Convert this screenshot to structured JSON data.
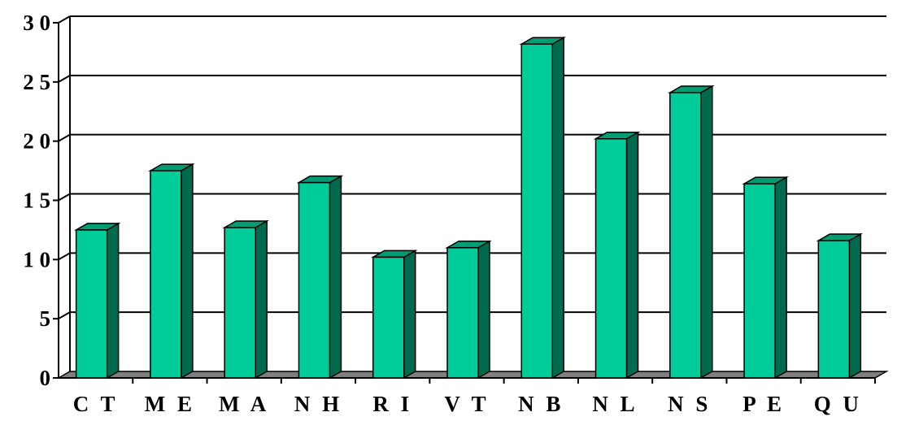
{
  "chart_data": {
    "type": "bar",
    "title": "",
    "xlabel": "",
    "ylabel": "",
    "categories": [
      "CT",
      "ME",
      "MA",
      "NH",
      "RI",
      "VT",
      "NB",
      "NL",
      "NS",
      "PE",
      "QU"
    ],
    "category_labels": [
      "C T",
      "M E",
      "M A",
      "N H",
      "R I",
      "V T",
      "N B",
      "N L",
      "N S",
      "P E",
      "Q U"
    ],
    "values": [
      12.5,
      17.5,
      12.7,
      16.5,
      10.2,
      11.0,
      28.2,
      20.2,
      24.1,
      16.4,
      11.6
    ],
    "ylim": [
      0,
      30
    ],
    "yticks": [
      0,
      5,
      10,
      15,
      20,
      25,
      30
    ],
    "ytick_labels": [
      "0",
      "5",
      "1 0",
      "1 5",
      "2 0",
      "2 5",
      "3 0"
    ],
    "grid": true,
    "legend": "none",
    "style": "3d-bar",
    "colors": {
      "bar_front": "#00CC99",
      "bar_side": "#006A4E",
      "bar_top": "#009C73",
      "floor": "#7F7F7F",
      "grid": "#000000",
      "axis": "#000000"
    }
  }
}
